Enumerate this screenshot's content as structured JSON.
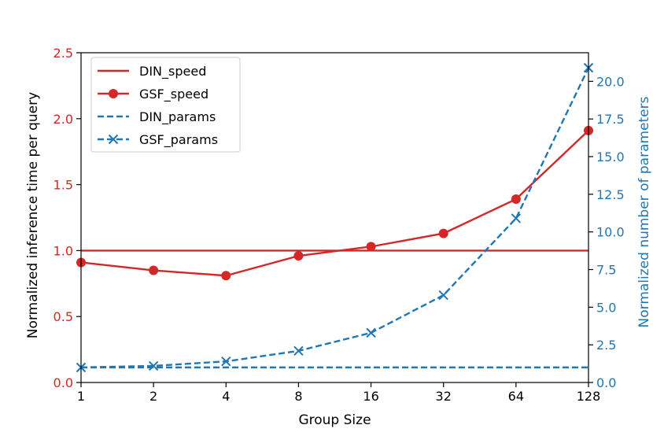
{
  "chart_data": {
    "type": "line",
    "xlabel": "Group Size",
    "ylabel_left": "Normalized inference time per query",
    "ylabel_right": "Normalized number of parameters",
    "categories": [
      "1",
      "2",
      "4",
      "8",
      "16",
      "32",
      "64",
      "128"
    ],
    "ylim_left": [
      0,
      2.5
    ],
    "yticks_left": [
      "0.0",
      "0.5",
      "1.0",
      "1.5",
      "2.0",
      "2.5"
    ],
    "ylim_right": [
      0,
      21.9
    ],
    "yticks_right": [
      "0.0",
      "2.5",
      "5.0",
      "7.5",
      "10.0",
      "12.5",
      "15.0",
      "17.5",
      "20.0"
    ],
    "grid": false,
    "legend_position": "top-left",
    "colors": {
      "speed": "#d62728",
      "params": "#1f77b4",
      "axis": "#000000"
    },
    "series": [
      {
        "name": "DIN_speed",
        "axis": "left",
        "style": "solid",
        "marker": "none",
        "color": "#d62728",
        "values": [
          1.0,
          1.0,
          1.0,
          1.0,
          1.0,
          1.0,
          1.0,
          1.0
        ]
      },
      {
        "name": "GSF_speed",
        "axis": "left",
        "style": "solid",
        "marker": "circle",
        "color": "#d62728",
        "values": [
          0.91,
          0.85,
          0.81,
          0.96,
          1.03,
          1.13,
          1.39,
          1.91
        ]
      },
      {
        "name": "DIN_params",
        "axis": "right",
        "style": "dashed",
        "marker": "none",
        "color": "#1f77b4",
        "values": [
          1.0,
          1.0,
          1.0,
          1.0,
          1.0,
          1.0,
          1.0,
          1.0
        ]
      },
      {
        "name": "GSF_params",
        "axis": "right",
        "style": "dashed",
        "marker": "x",
        "color": "#1f77b4",
        "values": [
          1.0,
          1.1,
          1.4,
          2.1,
          3.3,
          5.8,
          10.9,
          20.9
        ]
      }
    ]
  }
}
